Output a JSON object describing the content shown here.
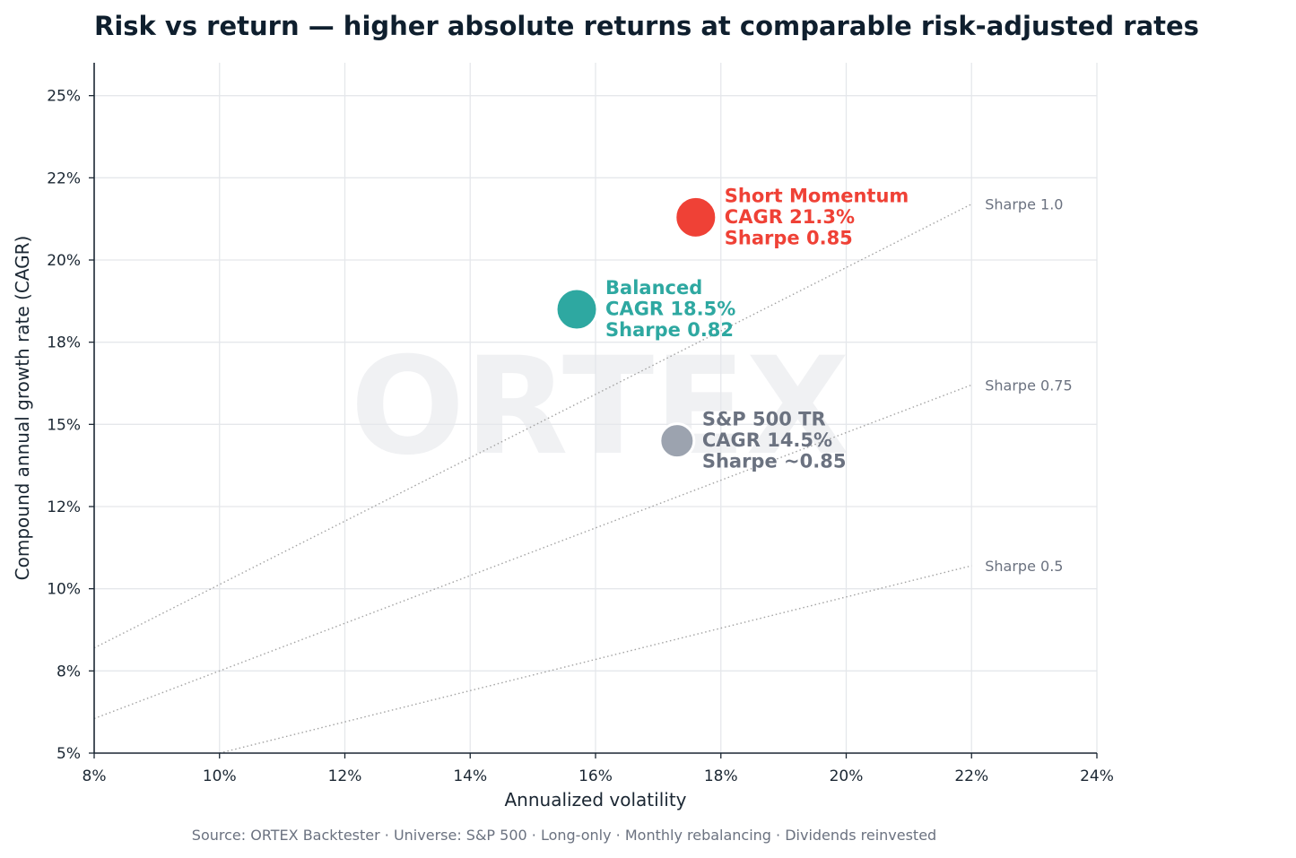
{
  "chart_data": {
    "type": "scatter",
    "title": "Risk vs return — higher absolute returns at comparable risk-adjusted rates",
    "xlabel": "Annualized volatility",
    "ylabel": "Compound annual growth rate (CAGR)",
    "xlim": [
      8,
      24
    ],
    "ylim": [
      5,
      26
    ],
    "xticks": [
      8,
      10,
      12,
      14,
      16,
      18,
      20,
      22,
      24
    ],
    "xtick_labels": [
      "8%",
      "10%",
      "12%",
      "14%",
      "16%",
      "18%",
      "20%",
      "22%",
      "24%"
    ],
    "yticks": [
      5,
      7.5,
      10,
      12.5,
      15,
      17.5,
      20,
      22.5,
      25
    ],
    "ytick_labels": [
      "5%",
      "8%",
      "10%",
      "12%",
      "15%",
      "18%",
      "20%",
      "22%",
      "25%"
    ],
    "grid": true,
    "watermark": "ORTEX",
    "points": [
      {
        "label_lines": [
          "Short Momentum",
          "CAGR 21.3%",
          "Sharpe 0.85"
        ],
        "x": 17.6,
        "y": 21.3,
        "color": "#ef4136",
        "size": "large"
      },
      {
        "label_lines": [
          "Balanced",
          "CAGR 18.5%",
          "Sharpe 0.82"
        ],
        "x": 15.7,
        "y": 18.5,
        "color": "#2ea8a1",
        "size": "large"
      },
      {
        "label_lines": [
          "S&P 500 TR",
          "CAGR 14.5%",
          "Sharpe ~0.85"
        ],
        "x": 17.3,
        "y": 14.5,
        "color": "#9ca3af",
        "label_color": "#6b7280",
        "size": "small"
      }
    ],
    "reference_lines": [
      {
        "label": "Sharpe 1.0",
        "sharpe": 1.0,
        "x": [
          8,
          22
        ],
        "y": [
          8.2,
          21.7
        ]
      },
      {
        "label": "Sharpe 0.75",
        "sharpe": 0.75,
        "x": [
          8,
          22
        ],
        "y": [
          6.05,
          16.2
        ]
      },
      {
        "label": "Sharpe 0.5",
        "sharpe": 0.5,
        "x": [
          10,
          22
        ],
        "y": [
          5.0,
          10.7
        ]
      }
    ],
    "source": "Source: ORTEX Backtester · Universe: S&P 500 · Long-only · Monthly rebalancing · Dividends reinvested"
  }
}
